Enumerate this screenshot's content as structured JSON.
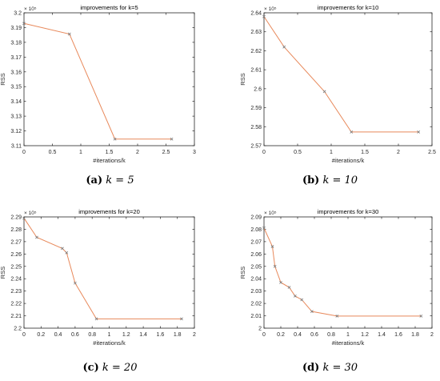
{
  "panels": [
    {
      "caption": {
        "sub": "(a)",
        "math": "k = 5"
      },
      "chart_data": {
        "type": "line",
        "title": "improvements for k=5",
        "xlabel": "#iterations/k",
        "ylabel": "RSS",
        "exponent_label": "× 10⁵",
        "xlim": [
          0,
          3
        ],
        "ylim": [
          3.11,
          3.21
        ],
        "xticks": [
          "0",
          "0.5",
          "1",
          "1.5",
          "2",
          "2.5",
          "3"
        ],
        "yticks": [
          "3.11",
          "3.12",
          "3.13",
          "3.14",
          "3.15",
          "3.16",
          "3.17",
          "3.18",
          "3.19",
          "3.2"
        ],
        "x": [
          0,
          0.8,
          1.6,
          2.6
        ],
        "y": [
          3.202,
          3.194,
          3.115,
          3.115
        ],
        "grid": false,
        "line_color": "#e8895b",
        "marker_color": "#7a7a7a"
      }
    },
    {
      "caption": {
        "sub": "(b)",
        "math": "k = 10"
      },
      "chart_data": {
        "type": "line",
        "title": "improvements for k=10",
        "xlabel": "#iterations/k",
        "ylabel": "RSS",
        "exponent_label": "× 10⁵",
        "xlim": [
          0,
          2.5
        ],
        "ylim": [
          2.57,
          2.64
        ],
        "xticks": [
          "0",
          "0.5",
          "1",
          "1.5",
          "2",
          "2.5"
        ],
        "yticks": [
          "2.57",
          "2.58",
          "2.59",
          "2.6",
          "2.61",
          "2.62",
          "2.63",
          "2.64"
        ],
        "x": [
          0,
          0.3,
          0.9,
          1.3,
          2.3
        ],
        "y": [
          2.638,
          2.622,
          2.5985,
          2.5772,
          2.5772
        ],
        "grid": false,
        "line_color": "#e8895b",
        "marker_color": "#7a7a7a"
      }
    },
    {
      "caption": {
        "sub": "(c)",
        "math": "k = 20"
      },
      "chart_data": {
        "type": "line",
        "title": "improvements for k=20",
        "xlabel": "#iterations/k",
        "ylabel": "RSS",
        "exponent_label": "× 10⁵",
        "xlim": [
          0,
          2
        ],
        "ylim": [
          2.2,
          2.29
        ],
        "xticks": [
          "0",
          "0.2",
          "0.4",
          "0.6",
          "0.8",
          "1",
          "1.2",
          "1.4",
          "1.6",
          "1.8",
          "2"
        ],
        "yticks": [
          "2.2",
          "2.21",
          "2.22",
          "2.23",
          "2.24",
          "2.25",
          "2.26",
          "2.27",
          "2.28",
          "2.29"
        ],
        "x": [
          0,
          0.15,
          0.45,
          0.5,
          0.6,
          0.85,
          1.85
        ],
        "y": [
          2.289,
          2.2735,
          2.2645,
          2.261,
          2.2365,
          2.2075,
          2.2075
        ],
        "grid": false,
        "line_color": "#e8895b",
        "marker_color": "#7a7a7a"
      }
    },
    {
      "caption": {
        "sub": "(d)",
        "math": "k = 30"
      },
      "chart_data": {
        "type": "line",
        "title": "improvements for k=30",
        "xlabel": "#iterations/k",
        "ylabel": "RSS",
        "exponent_label": "× 10⁵",
        "xlim": [
          0,
          2
        ],
        "ylim": [
          2.0,
          2.09
        ],
        "xticks": [
          "0",
          "0.2",
          "0.4",
          "0.6",
          "0.8",
          "1",
          "1.2",
          "1.4",
          "1.6",
          "1.8",
          "2"
        ],
        "yticks": [
          "2",
          "2.01",
          "2.02",
          "2.03",
          "2.04",
          "2.05",
          "2.06",
          "2.07",
          "2.08",
          "2.09"
        ],
        "x": [
          0,
          0.1,
          0.13,
          0.2,
          0.3,
          0.37,
          0.45,
          0.57,
          0.87,
          1.87
        ],
        "y": [
          2.081,
          2.066,
          2.05,
          2.037,
          2.033,
          2.026,
          2.023,
          2.0135,
          2.0098,
          2.0098
        ],
        "grid": false,
        "line_color": "#e8895b",
        "marker_color": "#7a7a7a"
      }
    }
  ]
}
